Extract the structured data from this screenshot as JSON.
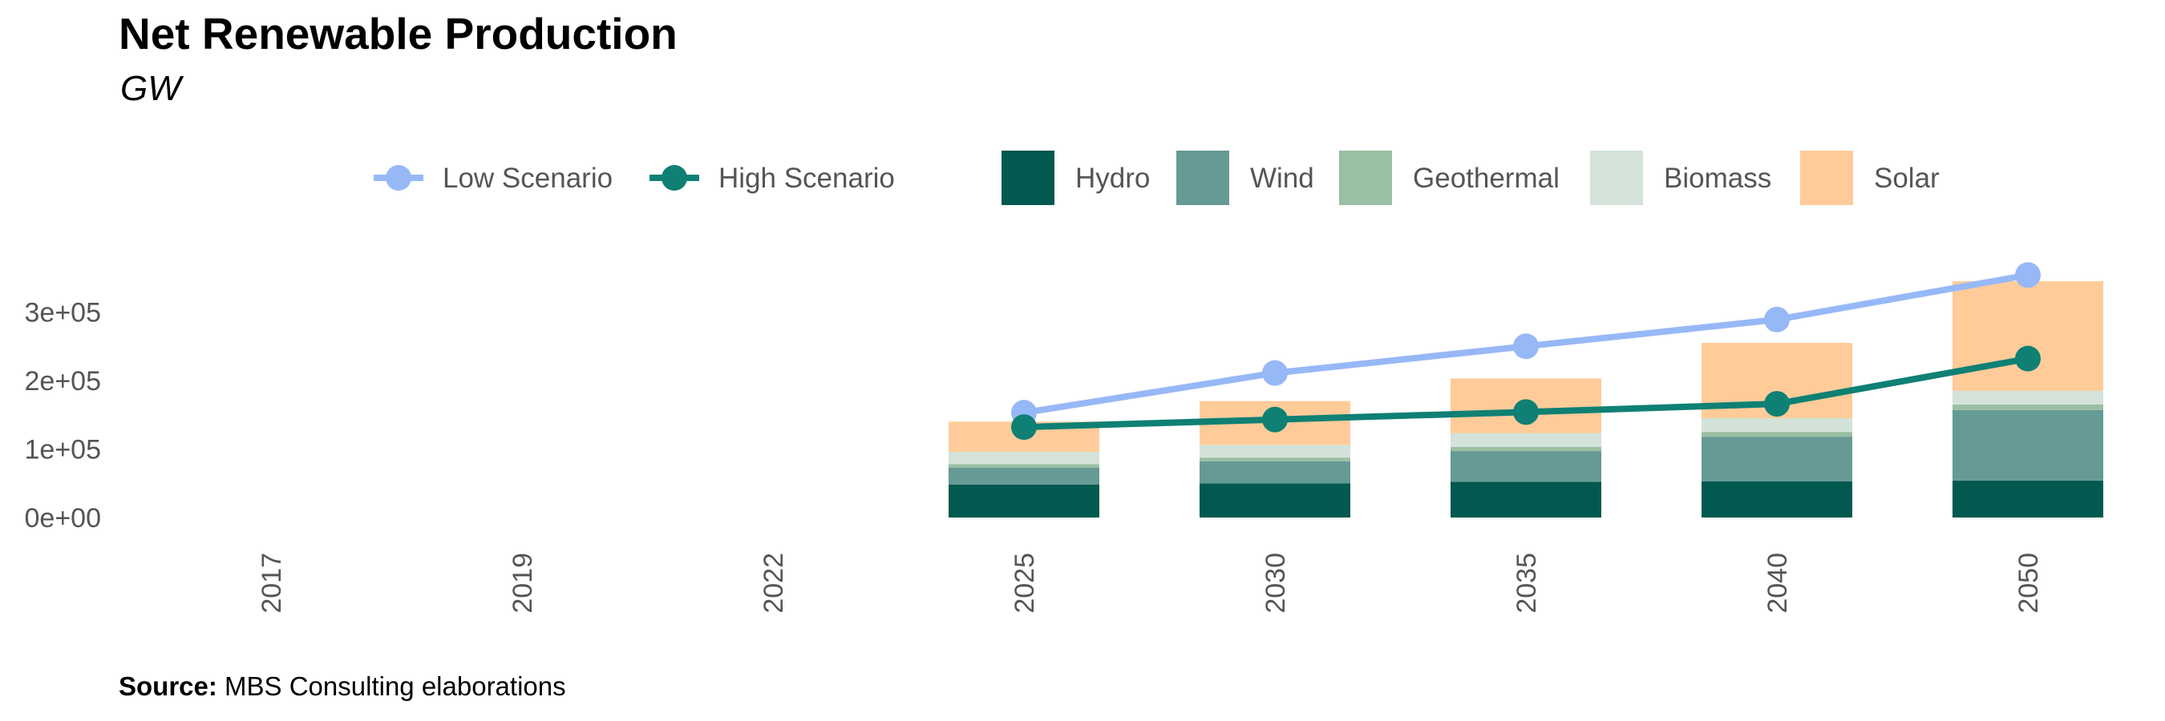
{
  "title": "Net Renewable Production",
  "subtitle": "GW",
  "source_label": "Source:",
  "source_text": "MBS Consulting elaborations",
  "chart_data": {
    "type": "bar",
    "stacked": true,
    "categories": [
      "2017",
      "2019",
      "2022",
      "2025",
      "2030",
      "2035",
      "2040",
      "2050"
    ],
    "ylim": [
      0,
      350000
    ],
    "yticks": [
      0,
      100000,
      200000,
      300000
    ],
    "ytick_labels": [
      "0e+00",
      "1e+05",
      "2e+05",
      "3e+05"
    ],
    "grid": false,
    "legend_position": "top",
    "series": [
      {
        "name": "Hydro",
        "color": "#01594F",
        "values": [
          null,
          null,
          null,
          48000,
          50000,
          52000,
          53000,
          54000
        ]
      },
      {
        "name": "Wind",
        "color": "#669A95",
        "values": [
          null,
          null,
          null,
          25000,
          32000,
          45000,
          65000,
          103000
        ]
      },
      {
        "name": "Geothermal",
        "color": "#9ABFA3",
        "values": [
          null,
          null,
          null,
          5000,
          5500,
          6000,
          7000,
          8000
        ]
      },
      {
        "name": "Biomass",
        "color": "#D3E3DA",
        "values": [
          null,
          null,
          null,
          18000,
          18500,
          20000,
          20000,
          20000
        ]
      },
      {
        "name": "Solar",
        "color": "#FFCC99",
        "values": [
          null,
          null,
          null,
          44000,
          64000,
          80000,
          110000,
          160000
        ]
      }
    ],
    "lines": [
      {
        "name": "Low Scenario",
        "color": "#97B8F7",
        "values": [
          null,
          null,
          null,
          153000,
          211000,
          250000,
          289000,
          354000
        ]
      },
      {
        "name": "High Scenario",
        "color": "#0F8074",
        "values": [
          null,
          null,
          null,
          132000,
          143000,
          154000,
          166000,
          232000
        ]
      }
    ]
  }
}
